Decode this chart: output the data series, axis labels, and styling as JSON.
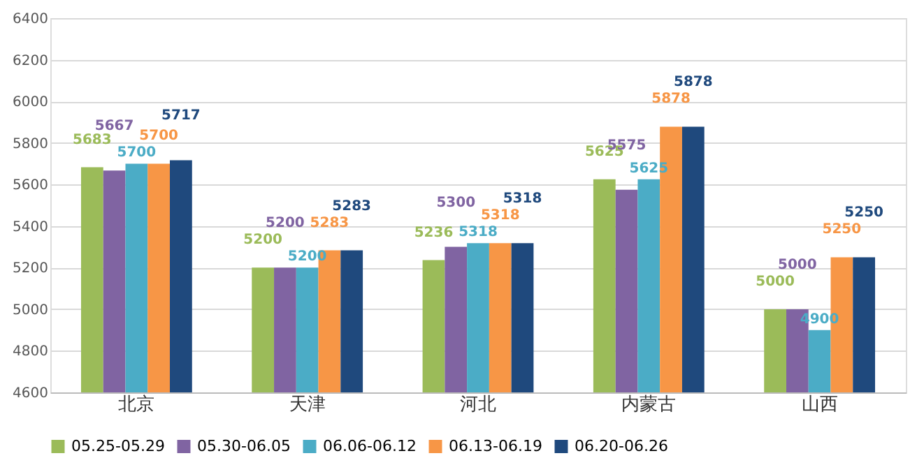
{
  "chart_data": {
    "type": "bar",
    "categories": [
      "北京",
      "天津",
      "河北",
      "内蒙古",
      "山西"
    ],
    "series": [
      {
        "name": "05.25-05.29",
        "color": "#9bbb59",
        "values": [
          5683,
          5200,
          5236,
          5625,
          5000
        ]
      },
      {
        "name": "05.30-06.05",
        "color": "#8064a2",
        "values": [
          5667,
          5200,
          5300,
          5575,
          5000
        ]
      },
      {
        "name": "06.06-06.12",
        "color": "#4bacc6",
        "values": [
          5700,
          5200,
          5318,
          5625,
          4900
        ]
      },
      {
        "name": "06.13-06.19",
        "color": "#f79646",
        "values": [
          5700,
          5283,
          5318,
          5878,
          5250
        ]
      },
      {
        "name": "06.20-06.26",
        "color": "#1f497d",
        "values": [
          5717,
          5283,
          5318,
          5878,
          5250
        ]
      }
    ],
    "ylim": [
      4600,
      6400
    ],
    "yticks": [
      4600,
      4800,
      5000,
      5200,
      5400,
      5600,
      5800,
      6000,
      6200,
      6400
    ],
    "grid": "y",
    "legend": "bottom",
    "data_labels": true
  }
}
